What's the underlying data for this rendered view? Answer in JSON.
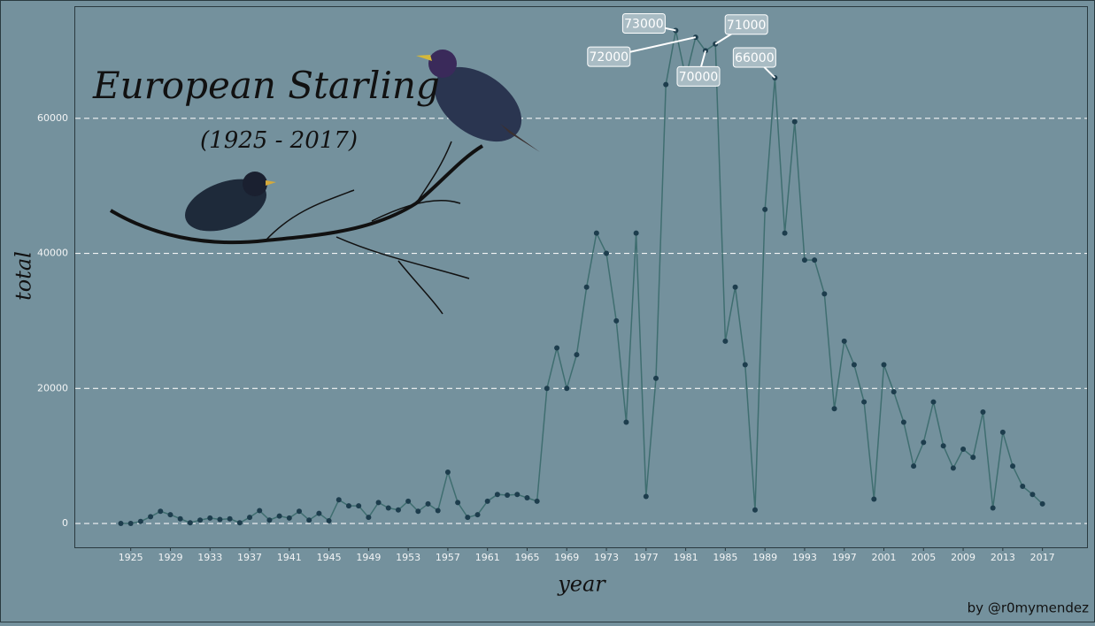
{
  "chart_data": {
    "type": "line",
    "title": "European Starling",
    "subtitle": "(1925 - 2017)",
    "x_label": "year",
    "y_label": "total",
    "caption": "by @r0mymendez",
    "x": [
      1924,
      1925,
      1926,
      1927,
      1928,
      1929,
      1930,
      1931,
      1932,
      1933,
      1934,
      1935,
      1936,
      1937,
      1938,
      1939,
      1940,
      1941,
      1942,
      1943,
      1944,
      1945,
      1946,
      1947,
      1948,
      1949,
      1950,
      1951,
      1952,
      1953,
      1954,
      1955,
      1956,
      1957,
      1958,
      1959,
      1960,
      1961,
      1962,
      1963,
      1964,
      1965,
      1966,
      1967,
      1968,
      1969,
      1970,
      1971,
      1972,
      1973,
      1974,
      1975,
      1976,
      1977,
      1978,
      1979,
      1980,
      1981,
      1982,
      1983,
      1984,
      1985,
      1986,
      1987,
      1988,
      1989,
      1990,
      1991,
      1992,
      1993,
      1994,
      1995,
      1996,
      1997,
      1998,
      1999,
      2000,
      2001,
      2002,
      2003,
      2004,
      2005,
      2006,
      2007,
      2008,
      2009,
      2010,
      2011,
      2012,
      2013,
      2014,
      2015,
      2016,
      2017
    ],
    "values": [
      0,
      0,
      300,
      1000,
      1800,
      1300,
      700,
      100,
      500,
      800,
      600,
      700,
      100,
      900,
      1900,
      500,
      1100,
      800,
      1800,
      500,
      1500,
      400,
      3500,
      2600,
      2600,
      900,
      3100,
      2300,
      2000,
      3300,
      1800,
      2900,
      1900,
      7600,
      3100,
      900,
      1300,
      3300,
      4300,
      4200,
      4300,
      3800,
      3300,
      20000,
      26000,
      20000,
      25000,
      35000,
      43000,
      40000,
      30000,
      15000,
      43000,
      4000,
      21500,
      65000,
      73000,
      66000,
      72000,
      70000,
      71000,
      27000,
      35000,
      23500,
      2000,
      46500,
      66000,
      43000,
      59500,
      39000,
      39000,
      34000,
      17000,
      27000,
      23500,
      18000,
      3600,
      23500,
      19500,
      15000,
      8500,
      12000,
      18000,
      11500,
      8200,
      11000,
      9800,
      16500,
      2300,
      13500,
      8500,
      5500,
      4300,
      2900
    ],
    "line_color": "#3f6e70",
    "point_color": "#1d3d4d",
    "annotations": [
      {
        "x": 1980,
        "y": 73000
      },
      {
        "x": 1982,
        "y": 72000
      },
      {
        "x": 1983,
        "y": 70000
      },
      {
        "x": 1984,
        "y": 71000
      },
      {
        "x": 1990,
        "y": 66000
      }
    ],
    "xlim": [
      1919.4,
      2021.5
    ],
    "ylim": [
      -3530,
      76470
    ],
    "xticks": [
      1925,
      1929,
      1933,
      1937,
      1941,
      1945,
      1949,
      1953,
      1957,
      1961,
      1965,
      1969,
      1973,
      1977,
      1981,
      1985,
      1989,
      1993,
      1997,
      2001,
      2005,
      2009,
      2013,
      2017
    ],
    "yticks": [
      0,
      20000,
      40000,
      60000
    ],
    "grid": true
  }
}
